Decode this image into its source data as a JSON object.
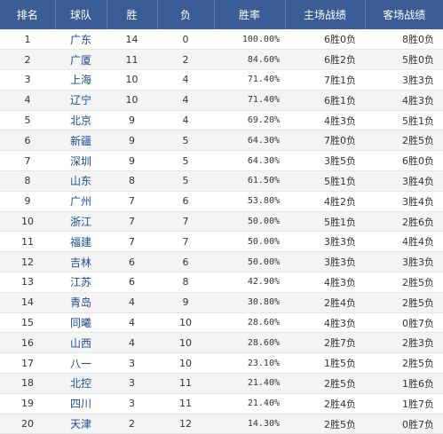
{
  "table": {
    "headers": [
      "排名",
      "球队",
      "胜",
      "负",
      "胜率",
      "主场战绩",
      "客场战绩"
    ],
    "rows": [
      {
        "rank": "1",
        "team": "广东",
        "w": "14",
        "l": "0",
        "pct": "100.00%",
        "home": "6胜0负",
        "away": "8胜0负"
      },
      {
        "rank": "2",
        "team": "广厦",
        "w": "11",
        "l": "2",
        "pct": "84.60%",
        "home": "6胜2负",
        "away": "5胜0负"
      },
      {
        "rank": "3",
        "team": "上海",
        "w": "10",
        "l": "4",
        "pct": "71.40%",
        "home": "7胜1负",
        "away": "3胜3负"
      },
      {
        "rank": "4",
        "team": "辽宁",
        "w": "10",
        "l": "4",
        "pct": "71.40%",
        "home": "6胜1负",
        "away": "4胜3负"
      },
      {
        "rank": "5",
        "team": "北京",
        "w": "9",
        "l": "4",
        "pct": "69.20%",
        "home": "4胜3负",
        "away": "5胜1负"
      },
      {
        "rank": "6",
        "team": "新疆",
        "w": "9",
        "l": "5",
        "pct": "64.30%",
        "home": "7胜0负",
        "away": "2胜5负"
      },
      {
        "rank": "7",
        "team": "深圳",
        "w": "9",
        "l": "5",
        "pct": "64.30%",
        "home": "3胜5负",
        "away": "6胜0负"
      },
      {
        "rank": "8",
        "team": "山东",
        "w": "8",
        "l": "5",
        "pct": "61.50%",
        "home": "5胜1负",
        "away": "3胜4负"
      },
      {
        "rank": "9",
        "team": "广州",
        "w": "7",
        "l": "6",
        "pct": "53.80%",
        "home": "4胜2负",
        "away": "3胜4负"
      },
      {
        "rank": "10",
        "team": "浙江",
        "w": "7",
        "l": "7",
        "pct": "50.00%",
        "home": "5胜1负",
        "away": "2胜6负"
      },
      {
        "rank": "11",
        "team": "福建",
        "w": "7",
        "l": "7",
        "pct": "50.00%",
        "home": "3胜3负",
        "away": "4胜4负"
      },
      {
        "rank": "12",
        "team": "吉林",
        "w": "6",
        "l": "6",
        "pct": "50.00%",
        "home": "3胜3负",
        "away": "3胜3负"
      },
      {
        "rank": "13",
        "team": "江苏",
        "w": "6",
        "l": "8",
        "pct": "42.90%",
        "home": "4胜3负",
        "away": "2胜5负"
      },
      {
        "rank": "14",
        "team": "青岛",
        "w": "4",
        "l": "9",
        "pct": "30.80%",
        "home": "2胜4负",
        "away": "2胜5负"
      },
      {
        "rank": "15",
        "team": "同曦",
        "w": "4",
        "l": "10",
        "pct": "28.60%",
        "home": "4胜3负",
        "away": "0胜7负"
      },
      {
        "rank": "16",
        "team": "山西",
        "w": "4",
        "l": "10",
        "pct": "28.60%",
        "home": "2胜7负",
        "away": "2胜3负"
      },
      {
        "rank": "17",
        "team": "八一",
        "w": "3",
        "l": "10",
        "pct": "23.10%",
        "home": "1胜5负",
        "away": "2胜5负"
      },
      {
        "rank": "18",
        "team": "北控",
        "w": "3",
        "l": "11",
        "pct": "21.40%",
        "home": "2胜5负",
        "away": "1胜6负"
      },
      {
        "rank": "19",
        "team": "四川",
        "w": "3",
        "l": "11",
        "pct": "21.40%",
        "home": "2胜4负",
        "away": "1胜7负"
      },
      {
        "rank": "20",
        "team": "天津",
        "w": "2",
        "l": "12",
        "pct": "14.30%",
        "home": "2胜5负",
        "away": "0胜7负"
      }
    ]
  },
  "colors": {
    "header_bg": "#3a5d95",
    "header_text": "#ffffff",
    "team_link": "#1d4b93",
    "alt_row_bg": "#f4f4f4"
  }
}
